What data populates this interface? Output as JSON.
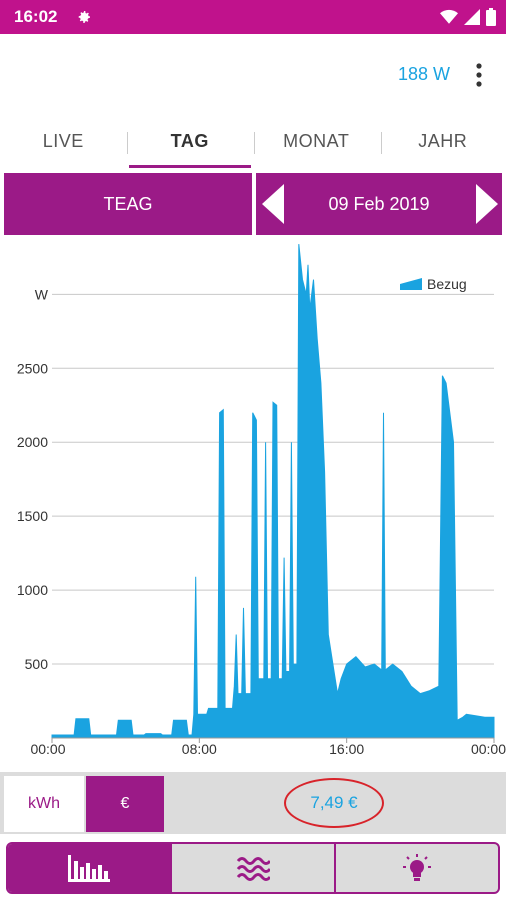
{
  "status_bar": {
    "time": "16:02",
    "gear_icon": "gear-icon",
    "icons": [
      "wifi-icon",
      "signal-icon",
      "battery-icon"
    ]
  },
  "header": {
    "current_power": "188 W",
    "menu_icon": "more-vert-icon"
  },
  "tabs": [
    {
      "label": "LIVE",
      "active": false
    },
    {
      "label": "TAG",
      "active": true
    },
    {
      "label": "MONAT",
      "active": false
    },
    {
      "label": "JAHR",
      "active": false
    }
  ],
  "selector": {
    "provider": "TEAG",
    "date": "09 Feb 2019"
  },
  "colors": {
    "accent": "#9b1a87",
    "status_bar": "#c0128c",
    "series": "#1aa3e0",
    "highlight": "#d8232a"
  },
  "chart_data": {
    "type": "area",
    "ylabel": "W",
    "y_ticks": [
      500,
      1000,
      1500,
      2000,
      2500
    ],
    "x_ticks": [
      "00:00",
      "08:00",
      "16:00",
      "00:00"
    ],
    "ylim": [
      0,
      3300
    ],
    "xlim": [
      0,
      24
    ],
    "grid": true,
    "legend_position": "top-right",
    "series": [
      {
        "name": "Bezug",
        "points": [
          [
            0,
            20
          ],
          [
            1.2,
            20
          ],
          [
            1.3,
            130
          ],
          [
            2.0,
            130
          ],
          [
            2.1,
            20
          ],
          [
            3.5,
            20
          ],
          [
            3.6,
            120
          ],
          [
            4.3,
            120
          ],
          [
            4.4,
            20
          ],
          [
            5.0,
            20
          ],
          [
            5.1,
            30
          ],
          [
            5.9,
            30
          ],
          [
            6.0,
            20
          ],
          [
            6.5,
            20
          ],
          [
            6.6,
            120
          ],
          [
            7.3,
            120
          ],
          [
            7.4,
            20
          ],
          [
            7.6,
            20
          ],
          [
            7.7,
            160
          ],
          [
            7.8,
            1090
          ],
          [
            7.9,
            160
          ],
          [
            8.4,
            160
          ],
          [
            8.5,
            200
          ],
          [
            9.0,
            200
          ],
          [
            9.1,
            2200
          ],
          [
            9.3,
            2220
          ],
          [
            9.4,
            200
          ],
          [
            9.8,
            200
          ],
          [
            9.9,
            350
          ],
          [
            10.0,
            700
          ],
          [
            10.1,
            300
          ],
          [
            10.3,
            300
          ],
          [
            10.4,
            880
          ],
          [
            10.5,
            300
          ],
          [
            10.8,
            300
          ],
          [
            10.9,
            2200
          ],
          [
            11.1,
            2150
          ],
          [
            11.2,
            400
          ],
          [
            11.5,
            400
          ],
          [
            11.6,
            2000
          ],
          [
            11.7,
            400
          ],
          [
            11.9,
            400
          ],
          [
            12.0,
            2270
          ],
          [
            12.2,
            2250
          ],
          [
            12.3,
            400
          ],
          [
            12.5,
            400
          ],
          [
            12.6,
            1220
          ],
          [
            12.7,
            450
          ],
          [
            12.9,
            450
          ],
          [
            13.0,
            2000
          ],
          [
            13.1,
            500
          ],
          [
            13.3,
            500
          ],
          [
            13.4,
            3340
          ],
          [
            13.6,
            3100
          ],
          [
            13.8,
            3000
          ],
          [
            13.9,
            3200
          ],
          [
            14.0,
            2900
          ],
          [
            14.2,
            3100
          ],
          [
            14.4,
            2700
          ],
          [
            14.6,
            2400
          ],
          [
            14.8,
            1800
          ],
          [
            15.0,
            700
          ],
          [
            15.5,
            300
          ],
          [
            15.7,
            400
          ],
          [
            16.0,
            500
          ],
          [
            16.5,
            550
          ],
          [
            17.0,
            480
          ],
          [
            17.5,
            500
          ],
          [
            17.9,
            460
          ],
          [
            18.0,
            2200
          ],
          [
            18.1,
            460
          ],
          [
            18.5,
            500
          ],
          [
            19.0,
            450
          ],
          [
            19.5,
            350
          ],
          [
            20.0,
            300
          ],
          [
            20.5,
            320
          ],
          [
            21.0,
            350
          ],
          [
            21.2,
            2450
          ],
          [
            21.4,
            2400
          ],
          [
            21.6,
            2200
          ],
          [
            21.8,
            2000
          ],
          [
            22.0,
            120
          ],
          [
            22.3,
            140
          ],
          [
            22.5,
            160
          ],
          [
            23.0,
            150
          ],
          [
            23.5,
            140
          ],
          [
            24,
            140
          ]
        ]
      }
    ]
  },
  "cost_toggle": {
    "kwh_label": "kWh",
    "eur_label": "€",
    "active": "€",
    "total_cost": "7,49 €"
  },
  "bottom_nav": {
    "items": [
      "bar-chart-icon",
      "waves-icon",
      "lightbulb-icon"
    ],
    "active": "bar-chart-icon"
  }
}
